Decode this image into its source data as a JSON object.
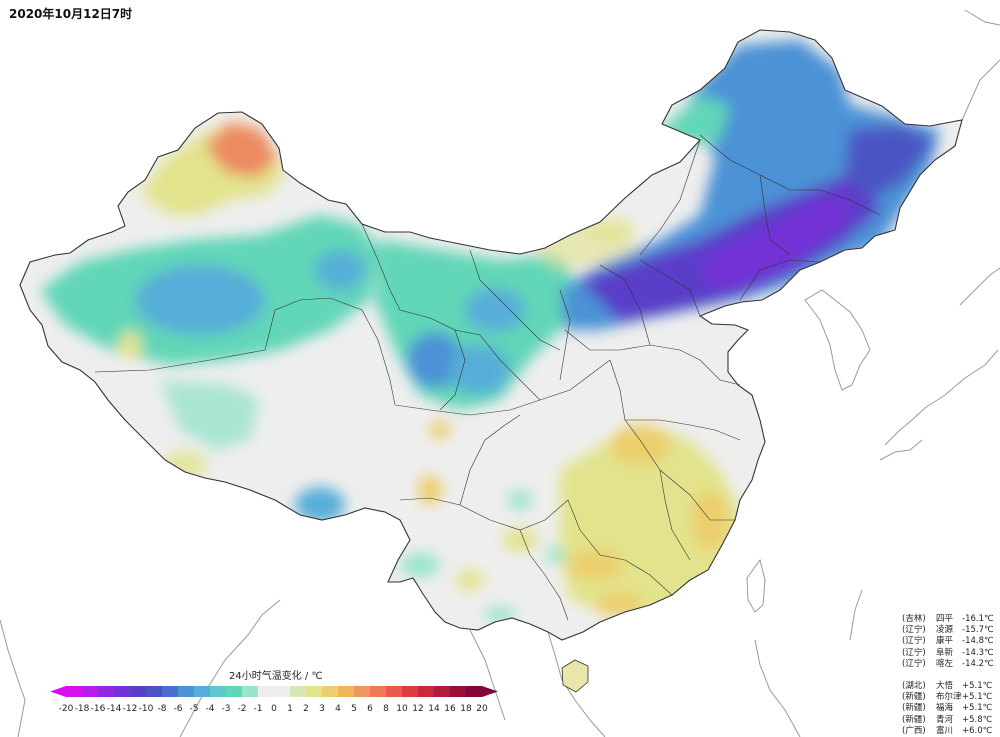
{
  "title": "2020年10月12日7时",
  "legend": {
    "title": "24小时气温变化 / ℃",
    "ticks": [
      "-20",
      "-18",
      "-16",
      "-14",
      "-12",
      "-10",
      "-8",
      "-6",
      "-5",
      "-4",
      "-3",
      "-2",
      "-1",
      "0",
      "1",
      "2",
      "3",
      "4",
      "5",
      "6",
      "8",
      "10",
      "12",
      "14",
      "16",
      "18",
      "20"
    ],
    "colors": [
      "#d610ee",
      "#b81ee8",
      "#9328e0",
      "#7232d6",
      "#5a3ec8",
      "#4c54c2",
      "#4a6ed0",
      "#4c92d6",
      "#57aed8",
      "#5ec8cc",
      "#62d6b8",
      "#98e4cc",
      "#eeeeee",
      "#eeeeee",
      "#d8e8b4",
      "#e2e38c",
      "#ecce6c",
      "#f2b45a",
      "#f19660",
      "#ee7a5a",
      "#e85a4c",
      "#dc3c40",
      "#c82a3c",
      "#b21c3c",
      "#9a0e3a",
      "#80063c"
    ]
  },
  "stations_drop": [
    {
      "province": "(吉林)",
      "name": "四平",
      "value": "-16.1℃"
    },
    {
      "province": "(辽宁)",
      "name": "凌源",
      "value": "-15.7℃"
    },
    {
      "province": "(辽宁)",
      "name": "康平",
      "value": "-14.8℃"
    },
    {
      "province": "(辽宁)",
      "name": "阜新",
      "value": "-14.3℃"
    },
    {
      "province": "(辽宁)",
      "name": "喀左",
      "value": "-14.2℃"
    }
  ],
  "stations_rise": [
    {
      "province": "(湖北)",
      "name": "大悟",
      "value": "+5.1℃"
    },
    {
      "province": "(新疆)",
      "name": "布尔津",
      "value": "+5.1℃"
    },
    {
      "province": "(新疆)",
      "name": "福海",
      "value": "+5.1℃"
    },
    {
      "province": "(新疆)",
      "name": "青河",
      "value": "+5.8℃"
    },
    {
      "province": "(广西)",
      "name": "富川",
      "value": "+6.0℃"
    }
  ],
  "colors": {
    "cold_strong": "#5a3ec8",
    "cold": "#4c92d6",
    "cool": "#62d6b8",
    "neutral": "#eeeeee",
    "warm": "#ecce6c",
    "hot": "#ee7a5a",
    "border": "#333333"
  }
}
